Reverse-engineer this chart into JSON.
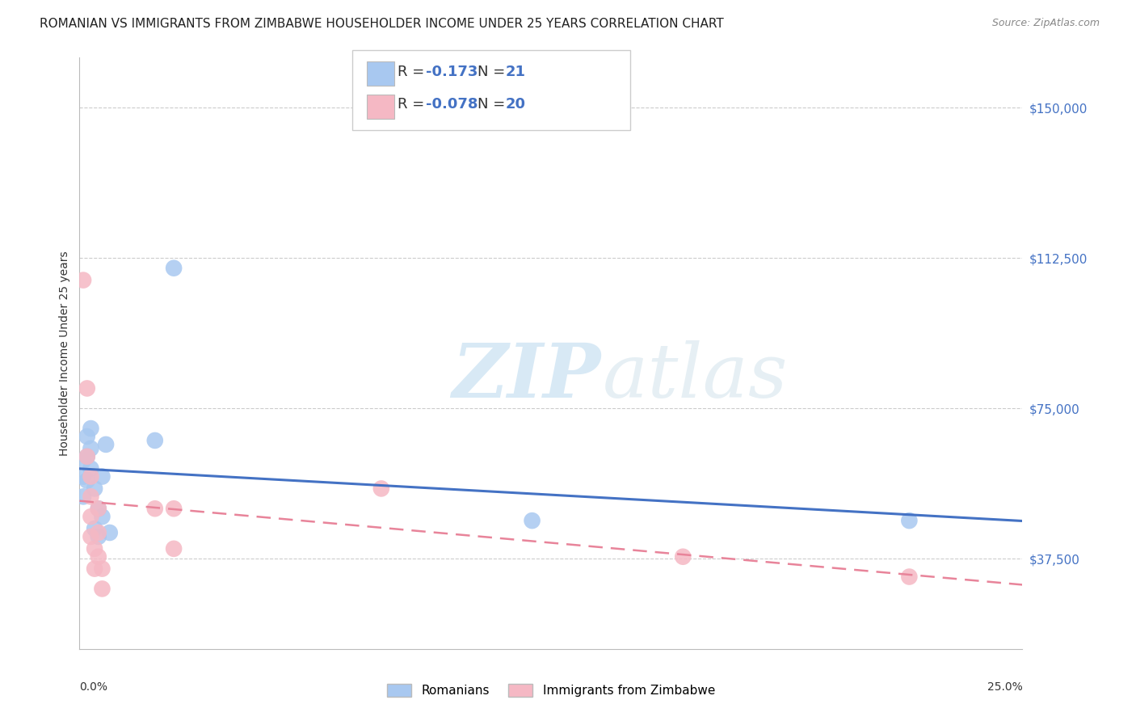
{
  "title": "ROMANIAN VS IMMIGRANTS FROM ZIMBABWE HOUSEHOLDER INCOME UNDER 25 YEARS CORRELATION CHART",
  "source": "Source: ZipAtlas.com",
  "ylabel": "Householder Income Under 25 years",
  "ytick_labels": [
    "$37,500",
    "$75,000",
    "$112,500",
    "$150,000"
  ],
  "ytick_values": [
    37500,
    75000,
    112500,
    150000
  ],
  "ylim": [
    15000,
    162500
  ],
  "xlim": [
    0.0,
    0.25
  ],
  "legend_romanian_R": "-0.173",
  "legend_romanian_N": "21",
  "legend_zimbabwe_R": "-0.078",
  "legend_zimbabwe_N": "20",
  "romanian_color": "#a8c8f0",
  "zimbabwe_color": "#f5b8c4",
  "romanian_line_color": "#4472c4",
  "zimbabwe_line_color": "#e8849a",
  "watermark_zip": "ZIP",
  "watermark_atlas": "atlas",
  "title_fontsize": 11,
  "axis_label_fontsize": 10,
  "tick_fontsize": 11,
  "romanian_x": [
    0.001,
    0.001,
    0.001,
    0.002,
    0.002,
    0.002,
    0.003,
    0.003,
    0.003,
    0.004,
    0.004,
    0.005,
    0.005,
    0.006,
    0.006,
    0.007,
    0.008,
    0.02,
    0.025,
    0.12,
    0.22
  ],
  "romanian_y": [
    62000,
    58000,
    53000,
    68000,
    63000,
    57000,
    70000,
    65000,
    60000,
    55000,
    45000,
    50000,
    43000,
    58000,
    48000,
    66000,
    44000,
    67000,
    110000,
    47000,
    47000
  ],
  "zimbabwe_x": [
    0.001,
    0.002,
    0.002,
    0.003,
    0.003,
    0.003,
    0.003,
    0.004,
    0.004,
    0.005,
    0.005,
    0.005,
    0.006,
    0.006,
    0.02,
    0.025,
    0.025,
    0.08,
    0.16,
    0.22
  ],
  "zimbabwe_y": [
    107000,
    80000,
    63000,
    58000,
    53000,
    48000,
    43000,
    40000,
    35000,
    50000,
    44000,
    38000,
    35000,
    30000,
    50000,
    50000,
    40000,
    55000,
    38000,
    33000
  ]
}
